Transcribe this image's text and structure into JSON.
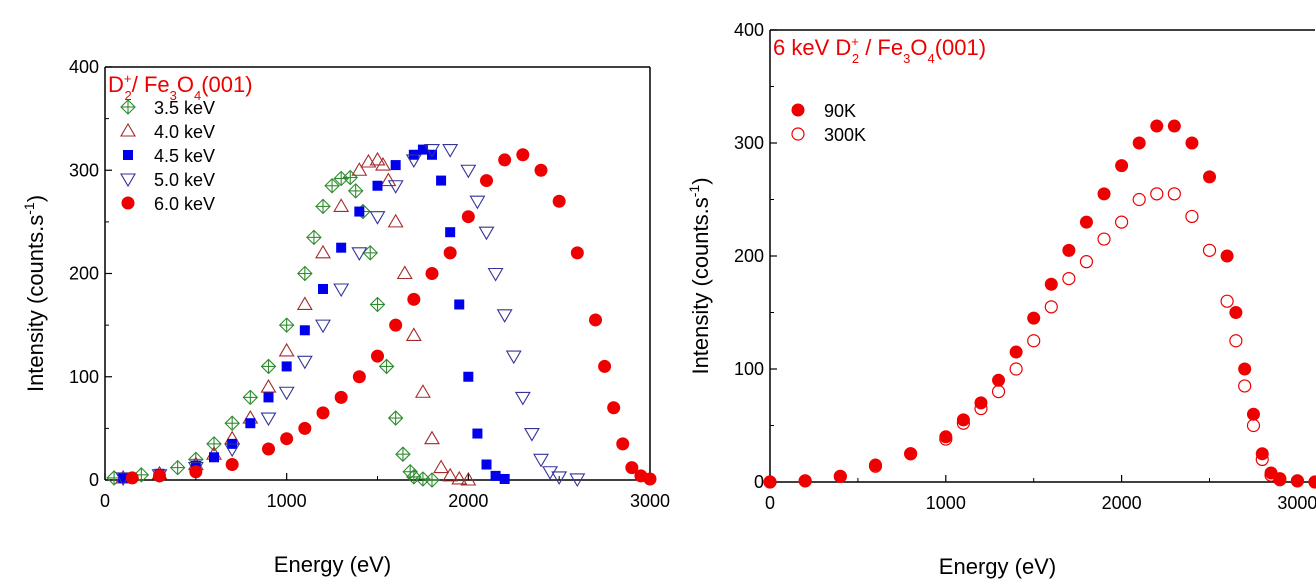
{
  "chart_data": [
    {
      "type": "scatter",
      "xlabel": "Energy  (eV)",
      "ylabel": "Intensity (counts.s",
      "ylabel_sup": "-1",
      "ylabel_tail": ")",
      "xlim": [
        0,
        3000
      ],
      "ylim": [
        0,
        400
      ],
      "x_ticks": [
        "0",
        "1000",
        "2000",
        "3000"
      ],
      "y_ticks": [
        "0",
        "100",
        "200",
        "300",
        "400"
      ],
      "annotation": {
        "base": "D",
        "sup": "+",
        "sub": "2",
        "rest": "/ Fe",
        "sub2": "3",
        "mid": "O",
        "sub3": "4",
        "tail": "(001)"
      },
      "grid": false,
      "legend_position": "top-left",
      "series": [
        {
          "name": "3.5 keV",
          "color": "#2e8b2e",
          "marker": "crossed-diamond",
          "x": [
            50,
            200,
            400,
            500,
            600,
            700,
            800,
            900,
            1000,
            1100,
            1150,
            1200,
            1250,
            1300,
            1350,
            1380,
            1420,
            1460,
            1500,
            1550,
            1600,
            1640,
            1680,
            1700,
            1750,
            1800
          ],
          "y": [
            2,
            5,
            12,
            20,
            35,
            55,
            80,
            110,
            150,
            200,
            235,
            265,
            285,
            292,
            293,
            280,
            260,
            220,
            170,
            110,
            60,
            25,
            8,
            3,
            1,
            0
          ]
        },
        {
          "name": "4.0 keV",
          "color": "#a52a2a",
          "marker": "triangle-up-open",
          "x": [
            100,
            300,
            500,
            600,
            700,
            800,
            900,
            1000,
            1100,
            1200,
            1300,
            1400,
            1450,
            1500,
            1530,
            1560,
            1600,
            1650,
            1700,
            1750,
            1800,
            1850,
            1900,
            1950,
            2000
          ],
          "y": [
            2,
            6,
            15,
            25,
            40,
            60,
            90,
            125,
            170,
            220,
            265,
            300,
            308,
            310,
            305,
            290,
            250,
            200,
            140,
            85,
            40,
            12,
            4,
            1,
            0
          ]
        },
        {
          "name": "4.5 keV",
          "color": "#0000ee",
          "marker": "square-filled",
          "x": [
            100,
            300,
            500,
            600,
            700,
            800,
            900,
            1000,
            1100,
            1200,
            1300,
            1400,
            1500,
            1600,
            1700,
            1750,
            1800,
            1850,
            1900,
            1950,
            2000,
            2050,
            2100,
            2150,
            2200
          ],
          "y": [
            2,
            6,
            14,
            22,
            35,
            55,
            80,
            110,
            145,
            185,
            225,
            260,
            285,
            305,
            315,
            320,
            315,
            290,
            240,
            170,
            100,
            45,
            15,
            4,
            1
          ]
        },
        {
          "name": "5.0 keV",
          "color": "#333399",
          "marker": "triangle-down-open",
          "x": [
            100,
            300,
            500,
            700,
            900,
            1000,
            1100,
            1200,
            1300,
            1400,
            1500,
            1600,
            1700,
            1800,
            1900,
            2000,
            2050,
            2100,
            2150,
            2200,
            2250,
            2300,
            2350,
            2400,
            2450,
            2500,
            2600
          ],
          "y": [
            2,
            5,
            12,
            30,
            60,
            85,
            115,
            150,
            185,
            220,
            255,
            285,
            310,
            320,
            320,
            300,
            270,
            240,
            200,
            160,
            120,
            80,
            45,
            20,
            8,
            3,
            1
          ]
        },
        {
          "name": "6.0 keV",
          "color": "#ee0000",
          "marker": "circle-filled",
          "x": [
            150,
            300,
            500,
            700,
            900,
            1000,
            1100,
            1200,
            1300,
            1400,
            1500,
            1600,
            1700,
            1800,
            1900,
            2000,
            2100,
            2200,
            2300,
            2400,
            2500,
            2600,
            2700,
            2750,
            2800,
            2850,
            2900,
            2950,
            3000
          ],
          "y": [
            2,
            4,
            8,
            15,
            30,
            40,
            50,
            65,
            80,
            100,
            120,
            150,
            175,
            200,
            220,
            255,
            290,
            310,
            315,
            300,
            270,
            220,
            155,
            110,
            70,
            35,
            12,
            4,
            1
          ]
        }
      ]
    },
    {
      "type": "scatter",
      "xlabel": "Energy  (eV)",
      "ylabel": "Intensity (counts.s",
      "ylabel_sup": "-1",
      "ylabel_tail": ")",
      "xlim": [
        0,
        3100
      ],
      "ylim": [
        0,
        400
      ],
      "x_ticks": [
        "0",
        "1000",
        "2000",
        "3000"
      ],
      "y_ticks": [
        "0",
        "100",
        "200",
        "300",
        "400"
      ],
      "annotation": {
        "base": "6 keV D",
        "sup": "+",
        "sub": "2",
        "rest": " / Fe",
        "sub2": "3",
        "mid": "O",
        "sub3": "4",
        "tail": "(001)"
      },
      "grid": false,
      "legend_position": "top-left",
      "series": [
        {
          "name": "90K",
          "color": "#ee0000",
          "marker": "circle-filled",
          "x": [
            0,
            200,
            400,
            600,
            800,
            1000,
            1100,
            1200,
            1300,
            1400,
            1500,
            1600,
            1700,
            1800,
            1900,
            2000,
            2100,
            2200,
            2300,
            2400,
            2500,
            2600,
            2650,
            2700,
            2750,
            2800,
            2850,
            2900,
            3000,
            3100
          ],
          "y": [
            0,
            1,
            5,
            15,
            25,
            40,
            55,
            70,
            90,
            115,
            145,
            175,
            205,
            230,
            255,
            280,
            300,
            315,
            315,
            300,
            270,
            200,
            150,
            100,
            60,
            25,
            8,
            3,
            1,
            0
          ]
        },
        {
          "name": "300K",
          "color": "#ee0000",
          "marker": "circle-open",
          "x": [
            0,
            200,
            400,
            600,
            800,
            1000,
            1100,
            1200,
            1300,
            1400,
            1500,
            1600,
            1700,
            1800,
            1900,
            2000,
            2100,
            2200,
            2300,
            2400,
            2500,
            2600,
            2650,
            2700,
            2750,
            2800,
            2850,
            2900,
            3000,
            3100
          ],
          "y": [
            0,
            1,
            5,
            14,
            25,
            38,
            52,
            65,
            80,
            100,
            125,
            155,
            180,
            195,
            215,
            230,
            250,
            255,
            255,
            235,
            205,
            160,
            125,
            85,
            50,
            20,
            6,
            2,
            1,
            0
          ]
        }
      ]
    }
  ]
}
